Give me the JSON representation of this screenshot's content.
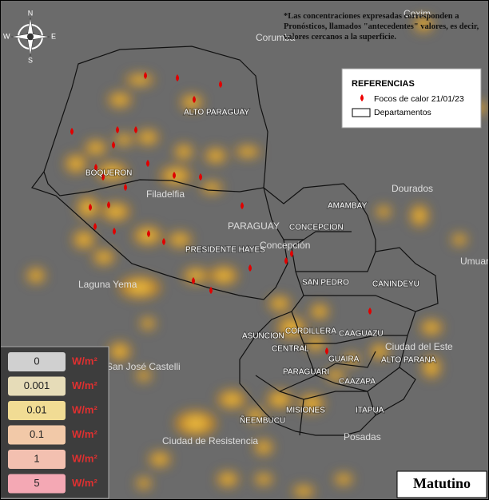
{
  "map": {
    "note": "*Las concentraciones expresadas corresponden a Pronósticos, llamados \"antecedentes\" valores, es decir, valores cercanos a la superficie.",
    "compass": {
      "n": "N",
      "s": "S",
      "e": "E",
      "w": "W"
    },
    "references": {
      "title": "REFERENCIAS",
      "fires": "Focos de calor 21/01/23",
      "departments": "Departamentos"
    },
    "departments": [
      "ALTO PARAGUAY",
      "BOQUERON",
      "PRESIDENTE HAYES",
      "CONCEPCION",
      "AMAMBAY",
      "SAN PEDRO",
      "CANINDEYU",
      "CORDILLERA",
      "CAAGUAZU",
      "CENTRAL",
      "ASUNCION",
      "GUAIRA",
      "ALTO PARANA",
      "PARAGUARI",
      "CAAZAPA",
      "MISIONES",
      "ITAPUA",
      "ÑEEMBUCU"
    ],
    "places": [
      "Corumbá",
      "Coxim",
      "Filadelfia",
      "PARAGUAY",
      "Concepción",
      "Dourados",
      "Umuarama",
      "Laguna Yema",
      "Ciudad del Este",
      "San José Castelli",
      "Ciudad de Resistencia",
      "Posadas"
    ],
    "scale": {
      "unit": "W/m²",
      "levels": [
        0,
        0.001,
        0.01,
        0.1,
        1,
        5
      ]
    },
    "period": "Matutino"
  }
}
